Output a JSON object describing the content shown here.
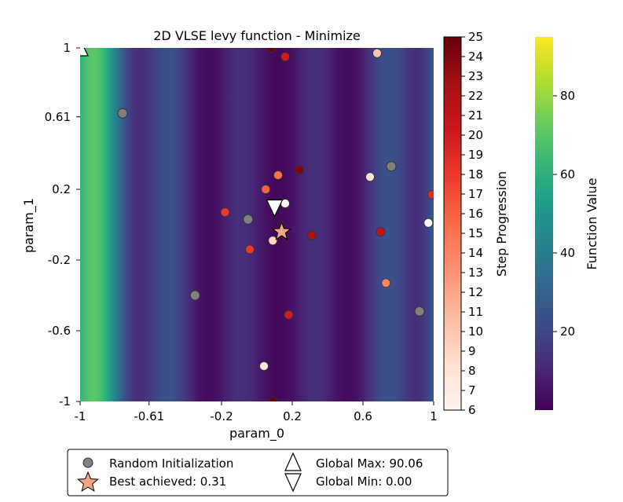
{
  "chart_data": {
    "type": "heatmap",
    "title": "2D VLSE levy function - Minimize",
    "xlabel": "param_0",
    "ylabel": "param_1",
    "xlim": [
      -1,
      1
    ],
    "ylim": [
      -1,
      1
    ],
    "x_ticks": [
      "-1",
      "-0.61",
      "-0.2",
      "0.2",
      "0.6",
      "1"
    ],
    "x_tick_values": [
      -1,
      -0.61,
      -0.2,
      0.2,
      0.6,
      1
    ],
    "y_ticks": [
      "1",
      "0.61",
      "0.2",
      "-0.2",
      "-0.6",
      "-1"
    ],
    "y_tick_values": [
      1,
      0.61,
      0.2,
      -0.2,
      -0.6,
      -1
    ],
    "colormap": "viridis",
    "colorbar": {
      "label": "Function Value",
      "range": [
        0,
        95
      ],
      "ticks": [
        "20",
        "40",
        "60",
        "80"
      ],
      "tick_values": [
        20,
        40,
        60,
        80
      ]
    },
    "step_colorbar": {
      "label": "Step Progression",
      "colormap": "Reds",
      "range": [
        6,
        25
      ],
      "ticks": [
        "6",
        "7",
        "8",
        "9",
        "10",
        "11",
        "12",
        "13",
        "14",
        "15",
        "16",
        "17",
        "18",
        "19",
        "20",
        "21",
        "22",
        "23",
        "24",
        "25"
      ],
      "tick_values": [
        6,
        7,
        8,
        9,
        10,
        11,
        12,
        13,
        14,
        15,
        16,
        17,
        18,
        19,
        20,
        21,
        22,
        23,
        24,
        25
      ]
    },
    "random_init_points": [
      {
        "x": -0.76,
        "y": 0.63
      },
      {
        "x": -0.05,
        "y": 0.03
      },
      {
        "x": -0.35,
        "y": -0.4
      },
      {
        "x": 0.76,
        "y": 0.33
      },
      {
        "x": 0.92,
        "y": -0.49
      }
    ],
    "step_points": [
      {
        "x": 0.08,
        "y": 1.0,
        "step": 25
      },
      {
        "x": 0.16,
        "y": 0.95,
        "step": 20
      },
      {
        "x": 0.68,
        "y": 0.97,
        "step": 10
      },
      {
        "x": 0.24,
        "y": 0.31,
        "step": 24
      },
      {
        "x": 0.12,
        "y": 0.28,
        "step": 15
      },
      {
        "x": 0.05,
        "y": 0.2,
        "step": 16
      },
      {
        "x": 0.64,
        "y": 0.27,
        "step": 8
      },
      {
        "x": 0.99,
        "y": 0.17,
        "step": 19
      },
      {
        "x": 0.16,
        "y": 0.12,
        "step": 6
      },
      {
        "x": -0.18,
        "y": 0.07,
        "step": 18
      },
      {
        "x": 0.97,
        "y": 0.01,
        "step": 6
      },
      {
        "x": 0.31,
        "y": -0.06,
        "step": 22
      },
      {
        "x": 0.7,
        "y": -0.04,
        "step": 21
      },
      {
        "x": 0.09,
        "y": -0.09,
        "step": 9
      },
      {
        "x": -0.04,
        "y": -0.14,
        "step": 18
      },
      {
        "x": 0.73,
        "y": -0.33,
        "step": 14
      },
      {
        "x": 0.18,
        "y": -0.51,
        "step": 20
      },
      {
        "x": 0.04,
        "y": -0.8,
        "step": 8
      },
      {
        "x": 0.09,
        "y": -1.0,
        "step": 25
      }
    ],
    "best_point": {
      "x": 0.14,
      "y": -0.04
    },
    "global_max_point": {
      "x": -1.0,
      "y": 1.0
    },
    "global_min_point": {
      "x": 0.1,
      "y": 0.1
    },
    "legend": {
      "placement": "bottom",
      "entries": [
        {
          "label": "Random Initialization"
        },
        {
          "label": "Global Max: 90.06"
        },
        {
          "label": "Best achieved: 0.31"
        },
        {
          "label": "Global Min: 0.00"
        }
      ]
    }
  }
}
